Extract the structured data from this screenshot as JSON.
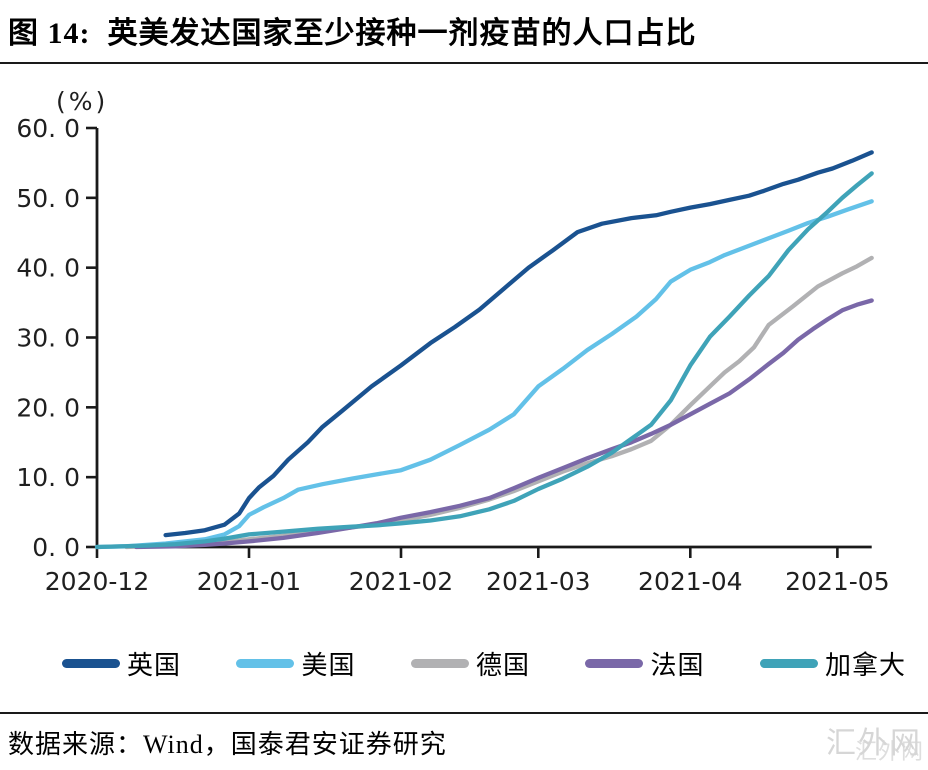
{
  "header": {
    "title": "图 14:  英美发达国家至少接种一剂疫苗的人口占比"
  },
  "footer": {
    "source_text": "数据来源：Wind，国泰君安证券研究",
    "watermark": "汇外网"
  },
  "chart_data": {
    "type": "line",
    "title": "英美发达国家至少接种一剂疫苗的人口占比",
    "unit_label": "(%)",
    "grid": false,
    "legend_position": "bottom",
    "axis_color": "#1a1a1a",
    "y_axis": {
      "range": [
        0,
        60
      ],
      "ticks": [
        0,
        10,
        20,
        30,
        40,
        50,
        60
      ],
      "tick_labels": [
        "0. 0",
        "10. 0",
        "20. 0",
        "30. 0",
        "40. 0",
        "50. 0",
        "60. 0"
      ]
    },
    "x_axis": {
      "range_days": [
        0,
        158
      ],
      "tick_days": [
        0,
        31,
        62,
        90,
        121,
        151
      ],
      "tick_labels": [
        "2020-12",
        "2021-01",
        "2021-02",
        "2021-03",
        "2021-04",
        "2021-05"
      ]
    },
    "series": [
      {
        "name": "英国",
        "color": "#1a5290",
        "points": [
          [
            14,
            1.7
          ],
          [
            18,
            2.0
          ],
          [
            22,
            2.4
          ],
          [
            26,
            3.2
          ],
          [
            29,
            4.8
          ],
          [
            31,
            7.0
          ],
          [
            33,
            8.5
          ],
          [
            36,
            10.2
          ],
          [
            39,
            12.5
          ],
          [
            43,
            15.0
          ],
          [
            46,
            17.2
          ],
          [
            50,
            19.5
          ],
          [
            56,
            23.0
          ],
          [
            62,
            26.0
          ],
          [
            68,
            29.2
          ],
          [
            73,
            31.5
          ],
          [
            78,
            34.0
          ],
          [
            83,
            37.0
          ],
          [
            88,
            40.0
          ],
          [
            93,
            42.5
          ],
          [
            98,
            45.1
          ],
          [
            103,
            46.3
          ],
          [
            109,
            47.1
          ],
          [
            114,
            47.5
          ],
          [
            117,
            48.0
          ],
          [
            121,
            48.6
          ],
          [
            125,
            49.1
          ],
          [
            129,
            49.7
          ],
          [
            133,
            50.3
          ],
          [
            136,
            51.0
          ],
          [
            140,
            52.0
          ],
          [
            143,
            52.6
          ],
          [
            147,
            53.6
          ],
          [
            150,
            54.2
          ],
          [
            154,
            55.3
          ],
          [
            158,
            56.5
          ]
        ]
      },
      {
        "name": "美国",
        "color": "#63c1e8",
        "points": [
          [
            0,
            0.0
          ],
          [
            6,
            0.1
          ],
          [
            10,
            0.3
          ],
          [
            14,
            0.5
          ],
          [
            18,
            0.8
          ],
          [
            22,
            1.1
          ],
          [
            26,
            1.8
          ],
          [
            29,
            3.0
          ],
          [
            31,
            4.6
          ],
          [
            34,
            5.7
          ],
          [
            38,
            7.0
          ],
          [
            41,
            8.2
          ],
          [
            46,
            9.0
          ],
          [
            52,
            9.8
          ],
          [
            57,
            10.4
          ],
          [
            62,
            11.0
          ],
          [
            68,
            12.5
          ],
          [
            74,
            14.6
          ],
          [
            80,
            16.8
          ],
          [
            85,
            19.0
          ],
          [
            90,
            23.0
          ],
          [
            95,
            25.5
          ],
          [
            100,
            28.2
          ],
          [
            105,
            30.5
          ],
          [
            110,
            33.0
          ],
          [
            114,
            35.5
          ],
          [
            117,
            38.0
          ],
          [
            121,
            39.7
          ],
          [
            125,
            40.8
          ],
          [
            128,
            41.8
          ],
          [
            131,
            42.6
          ],
          [
            134,
            43.4
          ],
          [
            137,
            44.2
          ],
          [
            141,
            45.3
          ],
          [
            145,
            46.4
          ],
          [
            149,
            47.3
          ],
          [
            153,
            48.3
          ],
          [
            158,
            49.5
          ]
        ]
      },
      {
        "name": "德国",
        "color": "#b1b1b3",
        "points": [
          [
            6,
            0.0
          ],
          [
            14,
            0.2
          ],
          [
            20,
            0.4
          ],
          [
            26,
            0.7
          ],
          [
            31,
            1.1
          ],
          [
            38,
            1.6
          ],
          [
            45,
            2.2
          ],
          [
            52,
            2.8
          ],
          [
            57,
            3.2
          ],
          [
            62,
            3.8
          ],
          [
            68,
            4.6
          ],
          [
            74,
            5.6
          ],
          [
            80,
            6.8
          ],
          [
            85,
            8.0
          ],
          [
            90,
            9.4
          ],
          [
            95,
            10.8
          ],
          [
            100,
            12.0
          ],
          [
            105,
            13.0
          ],
          [
            109,
            14.0
          ],
          [
            113,
            15.2
          ],
          [
            117,
            17.5
          ],
          [
            121,
            20.3
          ],
          [
            125,
            23.0
          ],
          [
            128,
            25.0
          ],
          [
            131,
            26.6
          ],
          [
            134,
            28.6
          ],
          [
            137,
            31.8
          ],
          [
            142,
            34.5
          ],
          [
            147,
            37.3
          ],
          [
            152,
            39.2
          ],
          [
            155,
            40.2
          ],
          [
            158,
            41.4
          ]
        ]
      },
      {
        "name": "法国",
        "color": "#7a68a8",
        "points": [
          [
            8,
            0.0
          ],
          [
            16,
            0.1
          ],
          [
            22,
            0.3
          ],
          [
            26,
            0.5
          ],
          [
            31,
            0.8
          ],
          [
            38,
            1.3
          ],
          [
            45,
            2.0
          ],
          [
            52,
            2.8
          ],
          [
            57,
            3.4
          ],
          [
            62,
            4.2
          ],
          [
            68,
            5.0
          ],
          [
            74,
            5.9
          ],
          [
            80,
            7.0
          ],
          [
            85,
            8.4
          ],
          [
            90,
            9.9
          ],
          [
            95,
            11.3
          ],
          [
            100,
            12.7
          ],
          [
            105,
            14.0
          ],
          [
            109,
            15.0
          ],
          [
            113,
            16.2
          ],
          [
            117,
            17.5
          ],
          [
            121,
            19.0
          ],
          [
            125,
            20.5
          ],
          [
            129,
            22.0
          ],
          [
            133,
            24.0
          ],
          [
            137,
            26.2
          ],
          [
            140,
            27.8
          ],
          [
            143,
            29.7
          ],
          [
            146,
            31.2
          ],
          [
            149,
            32.6
          ],
          [
            152,
            33.9
          ],
          [
            155,
            34.7
          ],
          [
            158,
            35.3
          ]
        ]
      },
      {
        "name": "加拿大",
        "color": "#3fa3b8",
        "points": [
          [
            0,
            0.0
          ],
          [
            10,
            0.2
          ],
          [
            16,
            0.4
          ],
          [
            22,
            0.8
          ],
          [
            26,
            1.2
          ],
          [
            31,
            1.8
          ],
          [
            38,
            2.2
          ],
          [
            45,
            2.6
          ],
          [
            52,
            2.9
          ],
          [
            57,
            3.1
          ],
          [
            62,
            3.4
          ],
          [
            68,
            3.8
          ],
          [
            74,
            4.4
          ],
          [
            80,
            5.4
          ],
          [
            85,
            6.6
          ],
          [
            90,
            8.3
          ],
          [
            95,
            9.8
          ],
          [
            100,
            11.5
          ],
          [
            105,
            13.5
          ],
          [
            109,
            15.5
          ],
          [
            113,
            17.5
          ],
          [
            117,
            21.0
          ],
          [
            121,
            26.0
          ],
          [
            125,
            30.1
          ],
          [
            129,
            33.0
          ],
          [
            133,
            36.0
          ],
          [
            137,
            38.8
          ],
          [
            141,
            42.5
          ],
          [
            145,
            45.5
          ],
          [
            149,
            48.0
          ],
          [
            152,
            50.0
          ],
          [
            155,
            51.8
          ],
          [
            158,
            53.5
          ]
        ]
      }
    ]
  }
}
